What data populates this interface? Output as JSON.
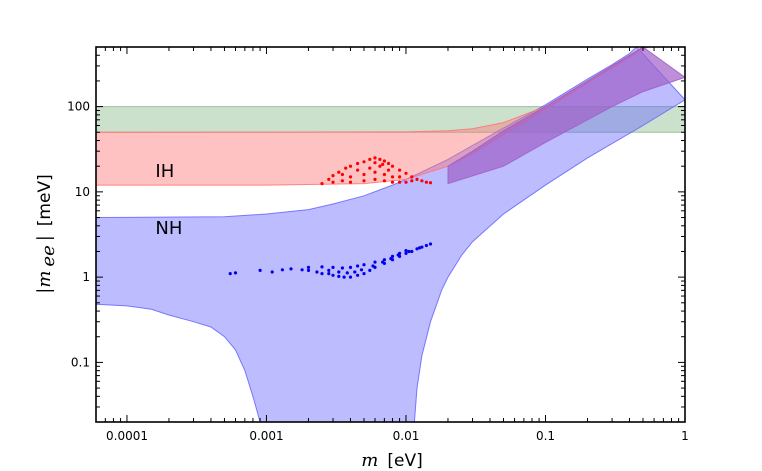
{
  "chart_data": {
    "type": "scatter",
    "title": "",
    "xlabel": {
      "symbol": "m",
      "unit": "[eV]"
    },
    "ylabel": {
      "symbol": "|m",
      "subscript": "ee",
      "close": "|",
      "unit": "[meV]"
    },
    "x_scale": "log",
    "y_scale": "log",
    "xlim": [
      6e-05,
      1
    ],
    "ylim": [
      0.02,
      500
    ],
    "x_ticks": [
      {
        "value": 0.0001,
        "label": "0.0001"
      },
      {
        "value": 0.001,
        "label": "0.001"
      },
      {
        "value": 0.01,
        "label": "0.01"
      },
      {
        "value": 0.1,
        "label": "0.1"
      },
      {
        "value": 1,
        "label": "1"
      }
    ],
    "y_ticks": [
      {
        "value": 0.1,
        "label": "0.1"
      },
      {
        "value": 1,
        "label": "1"
      },
      {
        "value": 10,
        "label": "10"
      },
      {
        "value": 100,
        "label": "100"
      }
    ],
    "annotations": [
      {
        "text": "IH",
        "x": 0.00016,
        "y": 15
      },
      {
        "text": "NH",
        "x": 0.00016,
        "y": 3.2
      }
    ],
    "bands": [
      {
        "id": "green-band",
        "color": "#8fbc8f",
        "opacity": 0.45,
        "upper": [
          [
            6e-05,
            100
          ],
          [
            1,
            100
          ]
        ],
        "lower": [
          [
            6e-05,
            50
          ],
          [
            1,
            50
          ]
        ]
      },
      {
        "id": "nh-band",
        "color": "#6b6bff",
        "opacity": 0.45,
        "upper": [
          [
            6e-05,
            5
          ],
          [
            0.0005,
            5.1
          ],
          [
            0.001,
            5.5
          ],
          [
            0.002,
            6.2
          ],
          [
            0.003,
            7.2
          ],
          [
            0.005,
            9
          ],
          [
            0.008,
            12
          ],
          [
            0.01,
            14
          ],
          [
            0.02,
            24
          ],
          [
            0.03,
            35
          ],
          [
            0.05,
            56
          ],
          [
            0.1,
            105
          ],
          [
            0.2,
            210
          ],
          [
            0.3,
            310
          ],
          [
            0.4,
            420
          ],
          [
            0.45,
            500
          ]
        ],
        "lower": [
          [
            6e-05,
            0.48
          ],
          [
            0.0001,
            0.46
          ],
          [
            0.00015,
            0.42
          ],
          [
            0.0002,
            0.36
          ],
          [
            0.0003,
            0.3
          ],
          [
            0.0004,
            0.26
          ],
          [
            0.0005,
            0.2
          ],
          [
            0.0006,
            0.14
          ],
          [
            0.0007,
            0.08
          ],
          [
            0.0008,
            0.04
          ],
          [
            0.0009,
            0.02
          ],
          [
            0.0115,
            0.02
          ],
          [
            0.012,
            0.05
          ],
          [
            0.013,
            0.12
          ],
          [
            0.015,
            0.3
          ],
          [
            0.018,
            0.7
          ],
          [
            0.02,
            1.0
          ],
          [
            0.025,
            1.8
          ],
          [
            0.03,
            2.6
          ],
          [
            0.05,
            5.5
          ],
          [
            0.1,
            12
          ],
          [
            0.2,
            25
          ],
          [
            0.5,
            60
          ],
          [
            1,
            120
          ]
        ]
      },
      {
        "id": "ih-band",
        "color": "#ff7777",
        "opacity": 0.45,
        "upper": [
          [
            6e-05,
            50
          ],
          [
            0.01,
            50.5
          ],
          [
            0.02,
            52
          ],
          [
            0.03,
            55
          ],
          [
            0.05,
            65
          ],
          [
            0.1,
            100
          ],
          [
            0.15,
            150
          ],
          [
            0.2,
            200
          ],
          [
            0.3,
            300
          ],
          [
            0.5,
            500
          ]
        ],
        "lower": [
          [
            6e-05,
            12
          ],
          [
            0.001,
            12
          ],
          [
            0.005,
            12.5
          ],
          [
            0.01,
            14
          ],
          [
            0.02,
            20
          ],
          [
            0.03,
            28
          ],
          [
            0.05,
            47
          ],
          [
            0.1,
            93
          ],
          [
            0.2,
            190
          ],
          [
            0.3,
            285
          ],
          [
            0.5,
            480
          ],
          [
            0.55,
            500
          ]
        ]
      },
      {
        "id": "purple-band",
        "color": "#a060c8",
        "opacity": 0.7,
        "upper": [
          [
            0.02,
            20
          ],
          [
            0.03,
            30
          ],
          [
            0.05,
            52
          ],
          [
            0.1,
            100
          ],
          [
            0.2,
            200
          ],
          [
            0.3,
            300
          ],
          [
            0.5,
            500
          ]
        ],
        "lower": [
          [
            0.02,
            12.5
          ],
          [
            0.05,
            20
          ],
          [
            0.1,
            38
          ],
          [
            0.2,
            70
          ],
          [
            0.3,
            100
          ],
          [
            0.5,
            150
          ],
          [
            1,
            220
          ]
        ]
      }
    ],
    "series": [
      {
        "id": "ih-points",
        "color": "#ff0000",
        "points": [
          [
            0.0025,
            12.5
          ],
          [
            0.0028,
            14
          ],
          [
            0.003,
            15.5
          ],
          [
            0.0033,
            17
          ],
          [
            0.0037,
            19
          ],
          [
            0.004,
            20
          ],
          [
            0.0045,
            21.5
          ],
          [
            0.005,
            22.5
          ],
          [
            0.0055,
            24
          ],
          [
            0.006,
            25
          ],
          [
            0.0065,
            24
          ],
          [
            0.007,
            23
          ],
          [
            0.0075,
            21.5
          ],
          [
            0.008,
            20
          ],
          [
            0.009,
            18
          ],
          [
            0.01,
            16.5
          ],
          [
            0.011,
            15
          ],
          [
            0.012,
            14
          ],
          [
            0.013,
            13.5
          ],
          [
            0.014,
            13
          ],
          [
            0.015,
            12.8
          ],
          [
            0.004,
            15
          ],
          [
            0.005,
            16
          ],
          [
            0.006,
            17
          ],
          [
            0.007,
            16
          ],
          [
            0.008,
            15
          ],
          [
            0.005,
            13.5
          ],
          [
            0.006,
            14
          ],
          [
            0.007,
            13.5
          ],
          [
            0.008,
            13
          ],
          [
            0.009,
            13
          ],
          [
            0.01,
            13
          ],
          [
            0.0045,
            18
          ],
          [
            0.0055,
            19
          ],
          [
            0.0065,
            20
          ],
          [
            0.0075,
            18
          ],
          [
            0.0035,
            13.5
          ],
          [
            0.004,
            13
          ],
          [
            0.003,
            13
          ],
          [
            0.0035,
            16
          ],
          [
            0.006,
            22
          ],
          [
            0.0068,
            21
          ],
          [
            0.009,
            15
          ],
          [
            0.011,
            13.5
          ]
        ]
      },
      {
        "id": "nh-points",
        "color": "#0000ee",
        "points": [
          [
            0.00055,
            1.1
          ],
          [
            0.0006,
            1.12
          ],
          [
            0.0009,
            1.2
          ],
          [
            0.0011,
            1.15
          ],
          [
            0.0013,
            1.22
          ],
          [
            0.0015,
            1.25
          ],
          [
            0.0018,
            1.22
          ],
          [
            0.002,
            1.2
          ],
          [
            0.0023,
            1.15
          ],
          [
            0.0025,
            1.1
          ],
          [
            0.0028,
            1.1
          ],
          [
            0.003,
            1.05
          ],
          [
            0.0033,
            1.02
          ],
          [
            0.0036,
            1.0
          ],
          [
            0.004,
            1.0
          ],
          [
            0.0045,
            1.05
          ],
          [
            0.005,
            1.1
          ],
          [
            0.0055,
            1.2
          ],
          [
            0.006,
            1.3
          ],
          [
            0.007,
            1.45
          ],
          [
            0.008,
            1.6
          ],
          [
            0.009,
            1.75
          ],
          [
            0.01,
            1.9
          ],
          [
            0.011,
            2.0
          ],
          [
            0.012,
            2.15
          ],
          [
            0.013,
            2.25
          ],
          [
            0.014,
            2.35
          ],
          [
            0.015,
            2.45
          ],
          [
            0.002,
            1.3
          ],
          [
            0.0025,
            1.32
          ],
          [
            0.003,
            1.3
          ],
          [
            0.0035,
            1.28
          ],
          [
            0.004,
            1.3
          ],
          [
            0.0045,
            1.35
          ],
          [
            0.005,
            1.4
          ],
          [
            0.006,
            1.5
          ],
          [
            0.007,
            1.6
          ],
          [
            0.008,
            1.75
          ],
          [
            0.009,
            1.9
          ],
          [
            0.01,
            2.05
          ],
          [
            0.0028,
            1.2
          ],
          [
            0.0033,
            1.15
          ],
          [
            0.0038,
            1.12
          ],
          [
            0.0043,
            1.15
          ],
          [
            0.0048,
            1.22
          ],
          [
            0.0058,
            1.35
          ],
          [
            0.0068,
            1.5
          ],
          [
            0.0078,
            1.65
          ],
          [
            0.0088,
            1.82
          ],
          [
            0.0105,
            2.0
          ],
          [
            0.0125,
            2.2
          ]
        ]
      }
    ],
    "legend": "none",
    "grid": false
  }
}
